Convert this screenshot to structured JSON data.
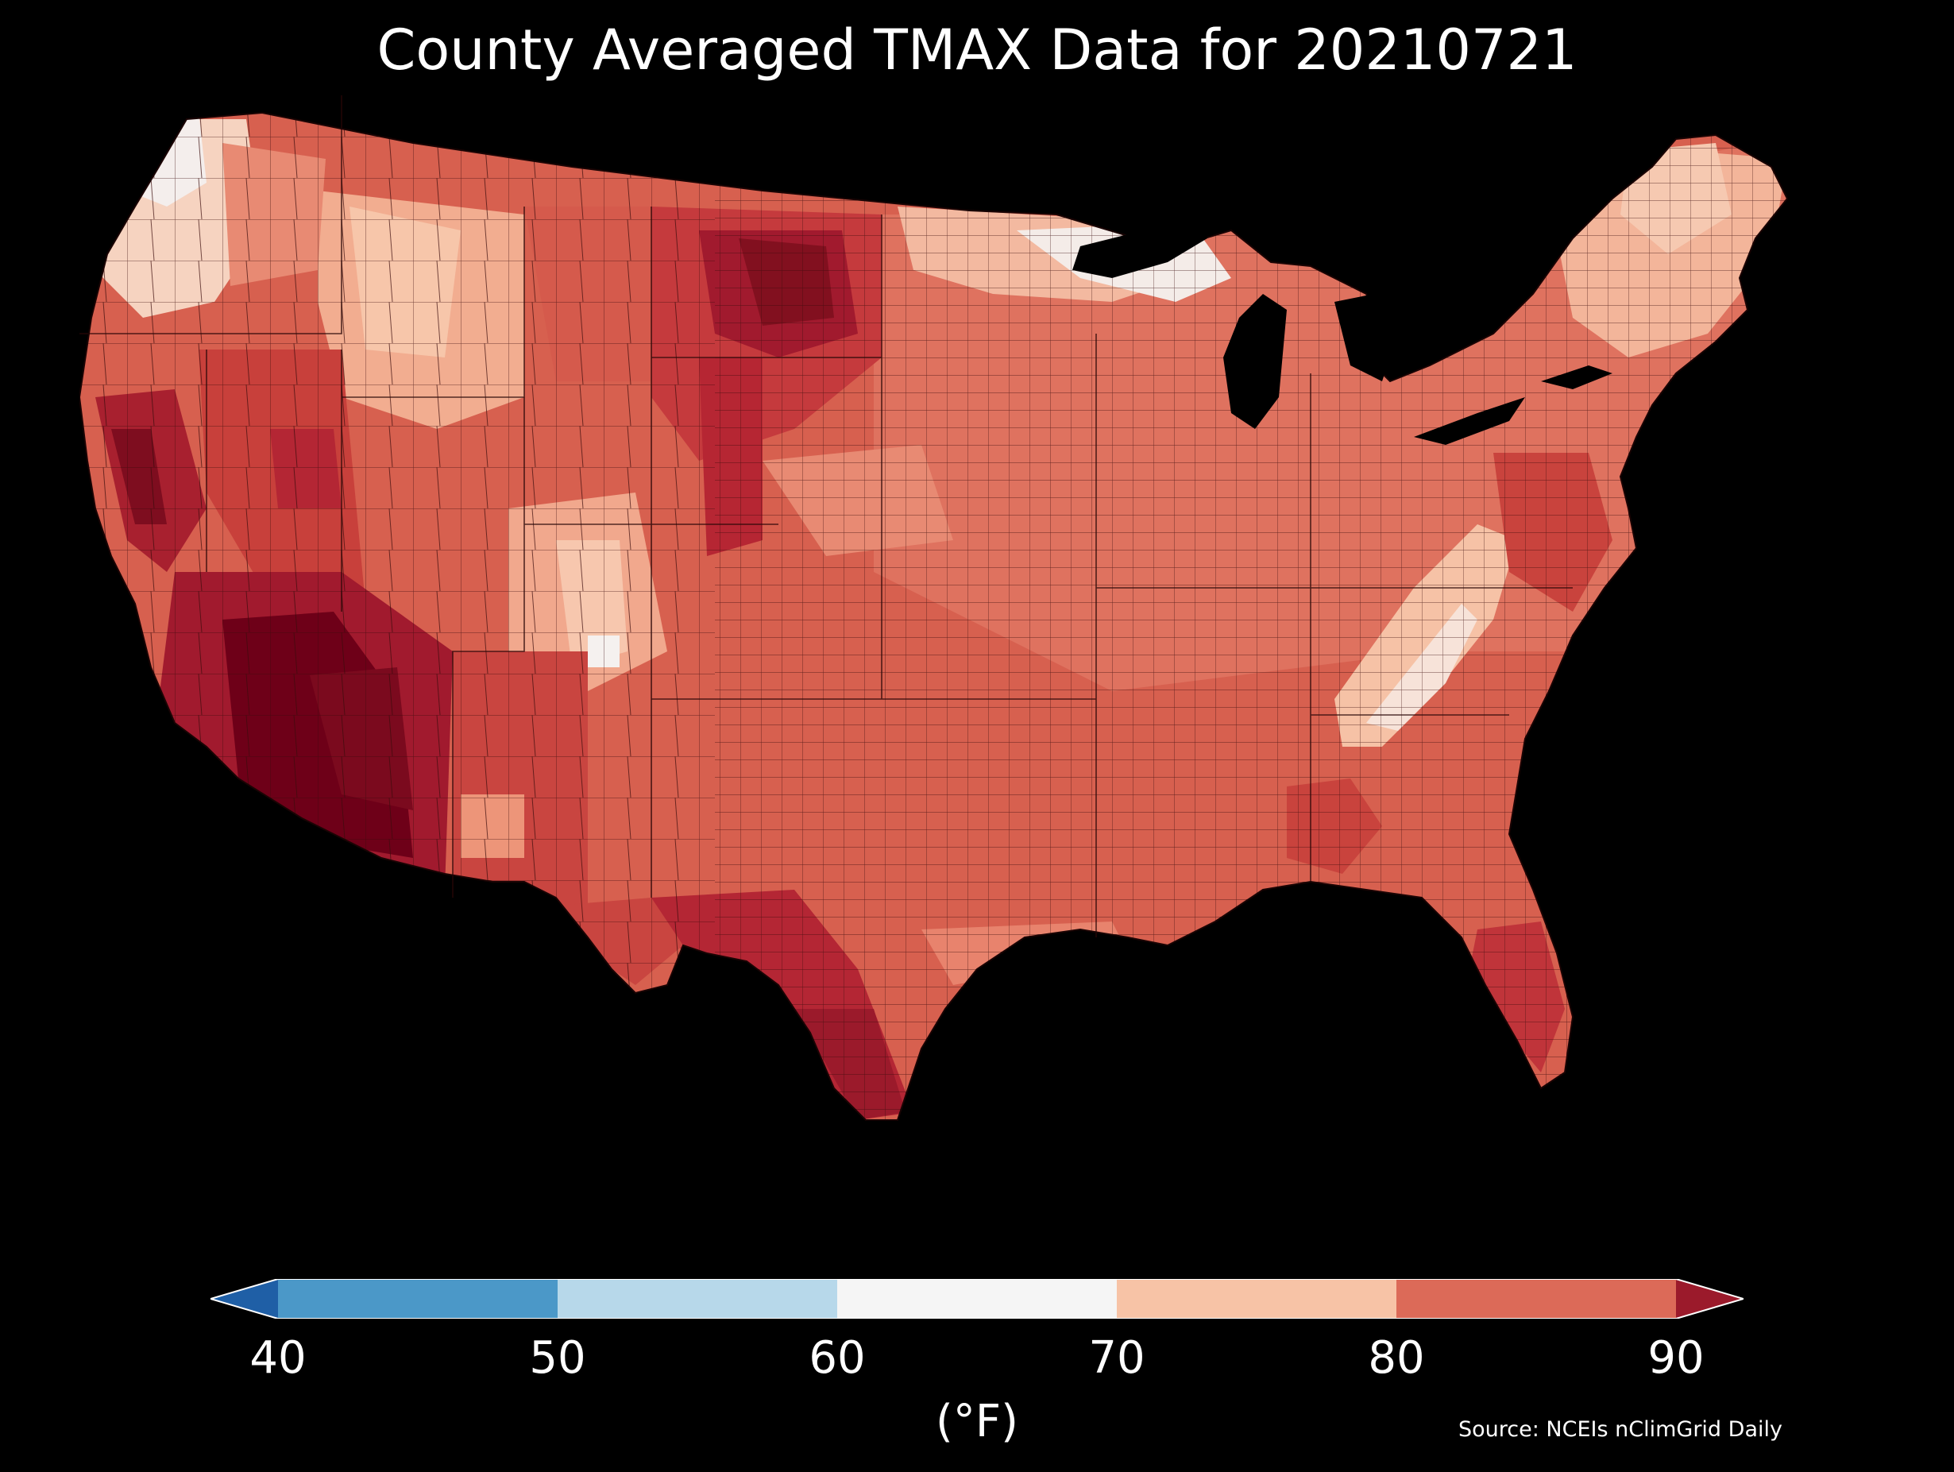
{
  "title": "County Averaged TMAX Data for 20210721",
  "colorbar": {
    "ticks": [
      "40",
      "50",
      "60",
      "70",
      "80",
      "90"
    ],
    "unit_label": "(°F)",
    "bins": [
      {
        "range": "<40",
        "color": "#1f5fa6"
      },
      {
        "range": "40-50",
        "color": "#4b98c8"
      },
      {
        "range": "50-60",
        "color": "#b7d8ea"
      },
      {
        "range": "60-70",
        "color": "#f5f5f5"
      },
      {
        "range": "70-80",
        "color": "#f7c3a6"
      },
      {
        "range": "80-90",
        "color": "#dc6a58"
      },
      {
        "range": ">90",
        "color": "#9b1a2b"
      }
    ]
  },
  "source": "Source: NCEIs nClimGrid Daily",
  "map": {
    "background": "#000000",
    "county_border_color": "#3a0c0c"
  }
}
